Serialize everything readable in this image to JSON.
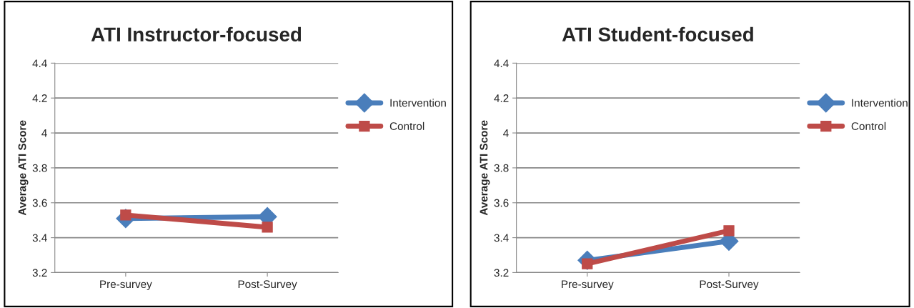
{
  "chart_data": [
    {
      "type": "line",
      "title": "ATI Instructor-focused",
      "ylabel": "Average ATI Score",
      "categories": [
        "Pre-survey",
        "Post-Survey"
      ],
      "ylim": [
        3.2,
        4.4
      ],
      "yticks": [
        3.2,
        3.4,
        3.6,
        3.8,
        4,
        4.2,
        4.4
      ],
      "grid": "y",
      "legend": "right",
      "series": [
        {
          "name": "Intervention",
          "color": "#4a7ebb",
          "marker": "diamond",
          "values": [
            3.51,
            3.52
          ]
        },
        {
          "name": "Control",
          "color": "#be4b48",
          "marker": "square",
          "values": [
            3.53,
            3.46
          ]
        }
      ]
    },
    {
      "type": "line",
      "title": "ATI Student-focused",
      "ylabel": "Average ATI Score",
      "categories": [
        "Pre-survey",
        "Post-Survey"
      ],
      "ylim": [
        3.2,
        4.4
      ],
      "yticks": [
        3.2,
        3.4,
        3.6,
        3.8,
        4,
        4.2,
        4.4
      ],
      "grid": "y",
      "legend": "right",
      "series": [
        {
          "name": "Intervention",
          "color": "#4a7ebb",
          "marker": "diamond",
          "values": [
            3.27,
            3.38
          ]
        },
        {
          "name": "Control",
          "color": "#be4b48",
          "marker": "square",
          "values": [
            3.25,
            3.44
          ]
        }
      ]
    }
  ]
}
